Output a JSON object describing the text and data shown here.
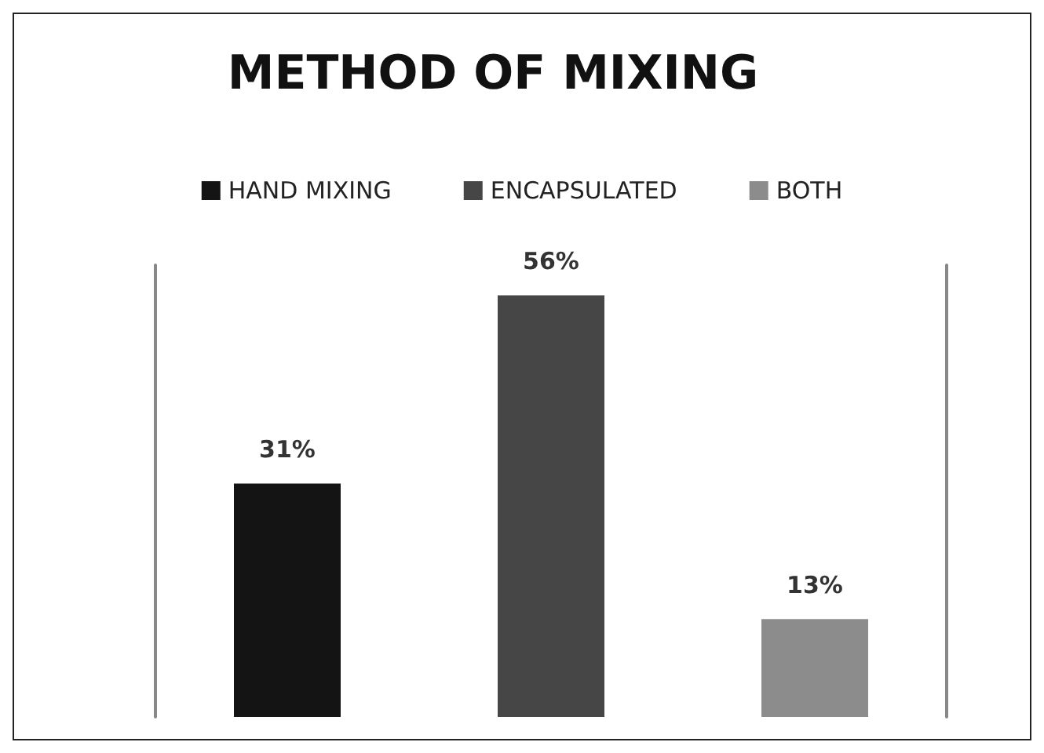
{
  "chart_data": {
    "type": "bar",
    "title": "METHOD OF MIXING",
    "categories": [
      null,
      null,
      null
    ],
    "stacked": true,
    "series": [
      {
        "name": "HAND MIXING",
        "color": "#141414",
        "values": [
          31,
          null,
          null
        ],
        "value_labels": [
          "31%",
          null,
          null
        ]
      },
      {
        "name": "ENCAPSULATED",
        "color": "#464646",
        "values": [
          null,
          56,
          null
        ],
        "value_labels": [
          null,
          "56%",
          null
        ]
      },
      {
        "name": "BOTH",
        "color": "#8c8c8c",
        "values": [
          null,
          null,
          13
        ],
        "value_labels": [
          null,
          null,
          "13%"
        ]
      }
    ],
    "legend": "top",
    "grid": false,
    "tick_labels": false
  }
}
